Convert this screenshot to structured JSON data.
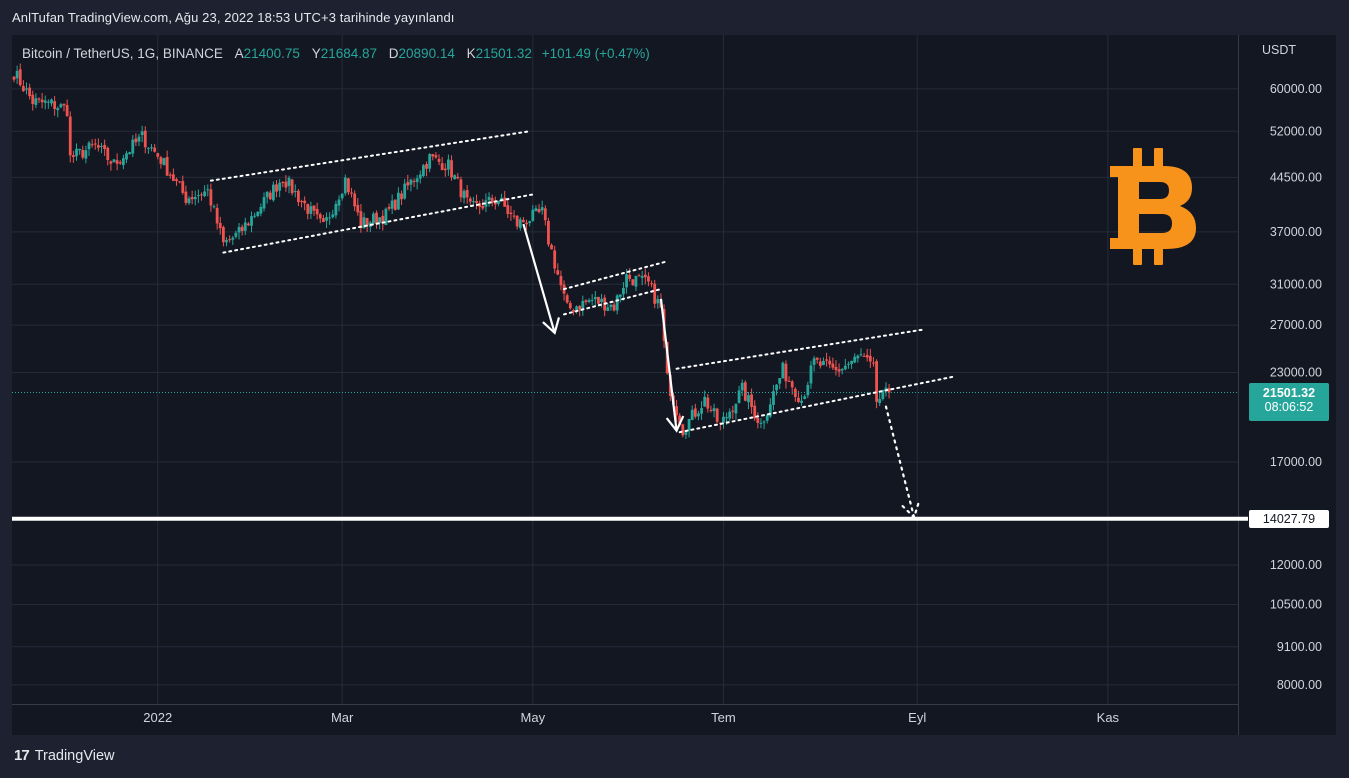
{
  "header": {
    "published": "AnlTufan TradingView.com, Ağu 23, 2022 18:53 UTC+3 tarihinde yayınlandı"
  },
  "legend": {
    "symbol": "Bitcoin / TetherUS, 1G, BINANCE",
    "open_label": "A",
    "open": "21400.75",
    "high_label": "Y",
    "high": "21684.87",
    "low_label": "D",
    "low": "20890.14",
    "close_label": "K",
    "close": "21501.32",
    "change": "+101.49 (+0.47%)"
  },
  "axis": {
    "currency": "USDT",
    "y_ticks": [
      "60000.00",
      "52000.00",
      "44500.00",
      "37000.00",
      "31000.00",
      "27000.00",
      "23000.00",
      "17000.00",
      "12000.00",
      "10500.00",
      "9100.00",
      "8000.00"
    ],
    "x_ticks": [
      "2022",
      "Mar",
      "May",
      "Tem",
      "Eyl",
      "Kas"
    ]
  },
  "badges": {
    "last_price": "21501.32",
    "countdown": "08:06:52",
    "support_level": "14027.79"
  },
  "footer": {
    "brand": "TradingView",
    "logo_text": "17"
  },
  "colors": {
    "up": "#26a69a",
    "down": "#ef5350",
    "background": "#131722",
    "grid": "#262b3a",
    "bitcoin": "#f7931a",
    "support": "#ffffff"
  },
  "icons": {
    "bitcoin_logo": "bitcoin-icon"
  },
  "chart_data": {
    "type": "candlestick",
    "symbol": "BTCUSDT",
    "timeframe": "1D",
    "scale": "log",
    "ylim": [
      7500,
      72000
    ],
    "xlim": [
      "2021-11-16",
      "2022-12-12"
    ],
    "support_line": 14027.79,
    "last_price": 21501.32,
    "price_path": [
      [
        "2021-11-16",
        63500
      ],
      [
        "2021-11-22",
        57500
      ],
      [
        "2021-11-28",
        57000
      ],
      [
        "2021-12-03",
        56000
      ],
      [
        "2021-12-04",
        47500
      ],
      [
        "2021-12-12",
        49500
      ],
      [
        "2021-12-18",
        46500
      ],
      [
        "2021-12-27",
        51000
      ],
      [
        "2022-01-02",
        47300
      ],
      [
        "2022-01-10",
        41500
      ],
      [
        "2022-01-17",
        42500
      ],
      [
        "2022-01-22",
        35500
      ],
      [
        "2022-01-27",
        36800
      ],
      [
        "2022-02-10",
        44500
      ],
      [
        "2022-02-23",
        37500
      ],
      [
        "2022-03-02",
        44200
      ],
      [
        "2022-03-07",
        38000
      ],
      [
        "2022-03-15",
        39200
      ],
      [
        "2022-03-29",
        47500
      ],
      [
        "2022-04-04",
        46300
      ],
      [
        "2022-04-11",
        40000
      ],
      [
        "2022-04-20",
        41300
      ],
      [
        "2022-04-26",
        38000
      ],
      [
        "2022-05-04",
        39500
      ],
      [
        "2022-05-06",
        36000
      ],
      [
        "2022-05-12",
        28500
      ],
      [
        "2022-05-20",
        29400
      ],
      [
        "2022-05-27",
        28800
      ],
      [
        "2022-05-31",
        31800
      ],
      [
        "2022-06-07",
        31000
      ],
      [
        "2022-06-11",
        28500
      ],
      [
        "2022-06-13",
        22500
      ],
      [
        "2022-06-18",
        19000
      ],
      [
        "2022-06-25",
        21000
      ],
      [
        "2022-06-30",
        19200
      ],
      [
        "2022-07-07",
        21700
      ],
      [
        "2022-07-13",
        19300
      ],
      [
        "2022-07-20",
        23200
      ],
      [
        "2022-07-26",
        21000
      ],
      [
        "2022-07-30",
        23800
      ],
      [
        "2022-08-06",
        23100
      ],
      [
        "2022-08-14",
        24300
      ],
      [
        "2022-08-18",
        23200
      ],
      [
        "2022-08-19",
        20900
      ],
      [
        "2022-08-23",
        21501.32
      ]
    ],
    "annotations": {
      "channels": [
        {
          "upper": [
            [
              "2022-01-18",
              44000
            ],
            [
              "2022-04-30",
              52000
            ]
          ],
          "lower": [
            [
              "2022-01-22",
              34500
            ],
            [
              "2022-05-01",
              42000
            ]
          ]
        },
        {
          "upper": [
            [
              "2022-05-11",
              30500
            ],
            [
              "2022-06-13",
              33500
            ]
          ],
          "lower": [
            [
              "2022-05-11",
              28000
            ],
            [
              "2022-06-11",
              30500
            ]
          ]
        },
        {
          "upper": [
            [
              "2022-06-16",
              23300
            ],
            [
              "2022-09-03",
              26600
            ]
          ],
          "lower": [
            [
              "2022-06-17",
              18800
            ],
            [
              "2022-09-13",
              22700
            ]
          ]
        }
      ],
      "arrows": [
        {
          "from": [
            "2022-04-28",
            38000
          ],
          "to": [
            "2022-05-08",
            26300
          ],
          "style": "solid"
        },
        {
          "from": [
            "2022-06-11",
            29500
          ],
          "to": [
            "2022-06-16",
            18900
          ],
          "style": "solid"
        },
        {
          "from": [
            "2022-08-22",
            20500
          ],
          "to": [
            "2022-08-31",
            14100
          ],
          "style": "dotted"
        }
      ]
    }
  }
}
